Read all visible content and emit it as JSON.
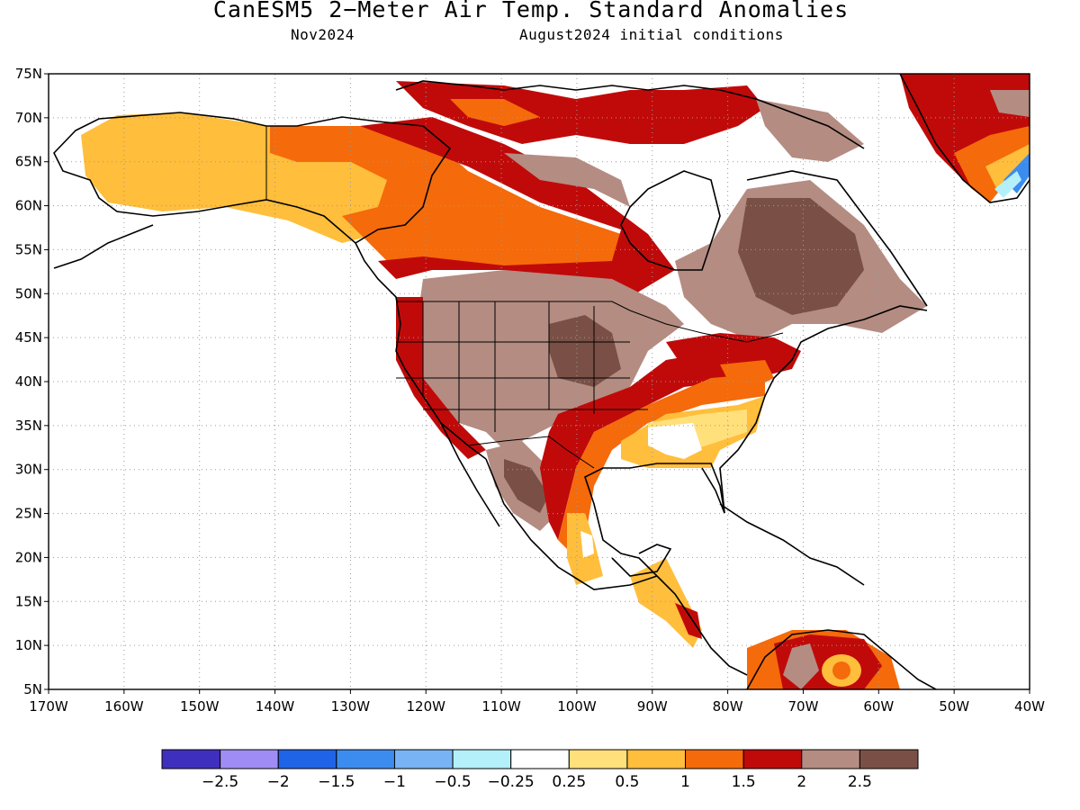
{
  "title": "CanESM5 2−Meter Air Temp. Standard Anomalies",
  "subtitle_left": "Nov2024",
  "subtitle_right": "August2024 initial conditions",
  "map": {
    "lon_range": [
      -170,
      -40
    ],
    "lat_range": [
      5,
      75
    ],
    "lat_labels": [
      "75N",
      "70N",
      "65N",
      "60N",
      "55N",
      "50N",
      "45N",
      "40N",
      "35N",
      "30N",
      "25N",
      "20N",
      "15N",
      "10N",
      "5N"
    ],
    "lon_labels": [
      "170W",
      "160W",
      "150W",
      "140W",
      "130W",
      "120W",
      "110W",
      "100W",
      "90W",
      "80W",
      "70W",
      "60W",
      "50W",
      "40W"
    ],
    "grid": "dotted"
  },
  "colorbar": {
    "colors": [
      "#3f2fbf",
      "#a08cf5",
      "#1f64e6",
      "#3c8cf0",
      "#78b4f5",
      "#b4f0fa",
      "#ffffff",
      "#ffe07a",
      "#ffbe3c",
      "#f56a0a",
      "#c00a0a",
      "#b48c82",
      "#7a5046"
    ],
    "labels": [
      "−2.5",
      "−2",
      "−1.5",
      "−1",
      "−0.5",
      "−0.25",
      "0.25",
      "0.5",
      "1",
      "1.5",
      "2",
      "2.5"
    ]
  }
}
